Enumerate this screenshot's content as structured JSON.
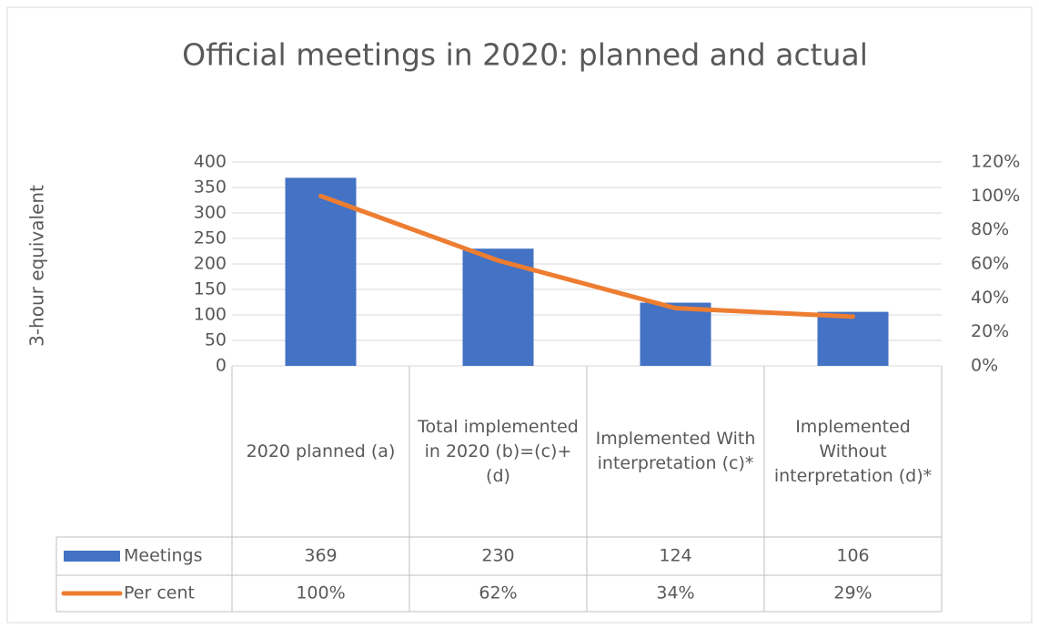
{
  "chart_data": {
    "type": "bar-line",
    "title": "Official meetings in 2020: planned and actual",
    "ylabel": "3-hour equivalent",
    "categories": [
      "2020 planned (a)",
      "Total implemented in 2020 (b)=(c)+(d)",
      "Implemented With interpretation (c)*",
      "Implemented Without interpretation (d)*"
    ],
    "series": [
      {
        "name": "Meetings",
        "type": "bar",
        "color": "#4472c4",
        "axis": "y",
        "values": [
          369,
          230,
          124,
          106
        ]
      },
      {
        "name": "Per cent",
        "type": "line",
        "color": "#ed7d31",
        "axis": "y2",
        "values": [
          100,
          62,
          34,
          29
        ],
        "value_labels": [
          "100%",
          "62%",
          "34%",
          "29%"
        ]
      }
    ],
    "ylim": [
      0,
      400
    ],
    "yticks": [
      0,
      50,
      100,
      150,
      200,
      250,
      300,
      350,
      400
    ],
    "y2lim": [
      0,
      120
    ],
    "y2ticks": [
      {
        "value": 0,
        "label": "0%"
      },
      {
        "value": 20,
        "label": "20%"
      },
      {
        "value": 40,
        "label": "40%"
      },
      {
        "value": 60,
        "label": "60%"
      },
      {
        "value": 80,
        "label": "80%"
      },
      {
        "value": 100,
        "label": "100%"
      },
      {
        "value": 120,
        "label": "120%"
      }
    ],
    "grid": true,
    "data_table": true
  }
}
